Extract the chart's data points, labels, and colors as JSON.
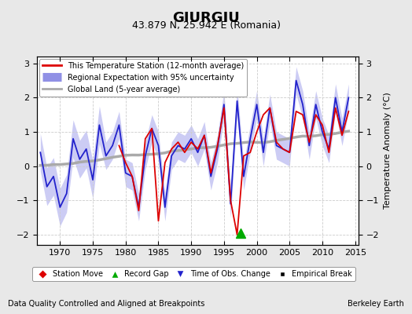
{
  "title": "GIURGIU",
  "subtitle": "43.879 N, 25.942 E (Romania)",
  "ylabel": "Temperature Anomaly (°C)",
  "xlabel_note": "Data Quality Controlled and Aligned at Breakpoints",
  "xlabel_note2": "Berkeley Earth",
  "ylim": [
    -2.3,
    3.2
  ],
  "xlim": [
    1966.5,
    2015.5
  ],
  "yticks": [
    -2,
    -1,
    0,
    1,
    2,
    3
  ],
  "xticks": [
    1970,
    1975,
    1980,
    1985,
    1990,
    1995,
    2000,
    2005,
    2010,
    2015
  ],
  "bg_color": "#e8e8e8",
  "plot_bg_color": "#ffffff",
  "grid_color": "#cccccc",
  "station_color": "#dd0000",
  "regional_color": "#2222cc",
  "uncertainty_color": "#aaaaee",
  "global_color": "#aaaaaa",
  "legend_items": [
    {
      "label": "This Temperature Station (12-month average)",
      "color": "#dd0000"
    },
    {
      "label": "Regional Expectation with 95% uncertainty",
      "color": "#2222cc"
    },
    {
      "label": "Global Land (5-year average)",
      "color": "#aaaaaa"
    }
  ],
  "marker_items": [
    {
      "label": "Station Move",
      "color": "#dd0000",
      "marker": "D"
    },
    {
      "label": "Record Gap",
      "color": "#00aa00",
      "marker": "^"
    },
    {
      "label": "Time of Obs. Change",
      "color": "#2222cc",
      "marker": "v"
    },
    {
      "label": "Empirical Break",
      "color": "#000000",
      "marker": "s"
    }
  ],
  "record_gap_x": 1997.5,
  "record_gap_y": -1.95
}
